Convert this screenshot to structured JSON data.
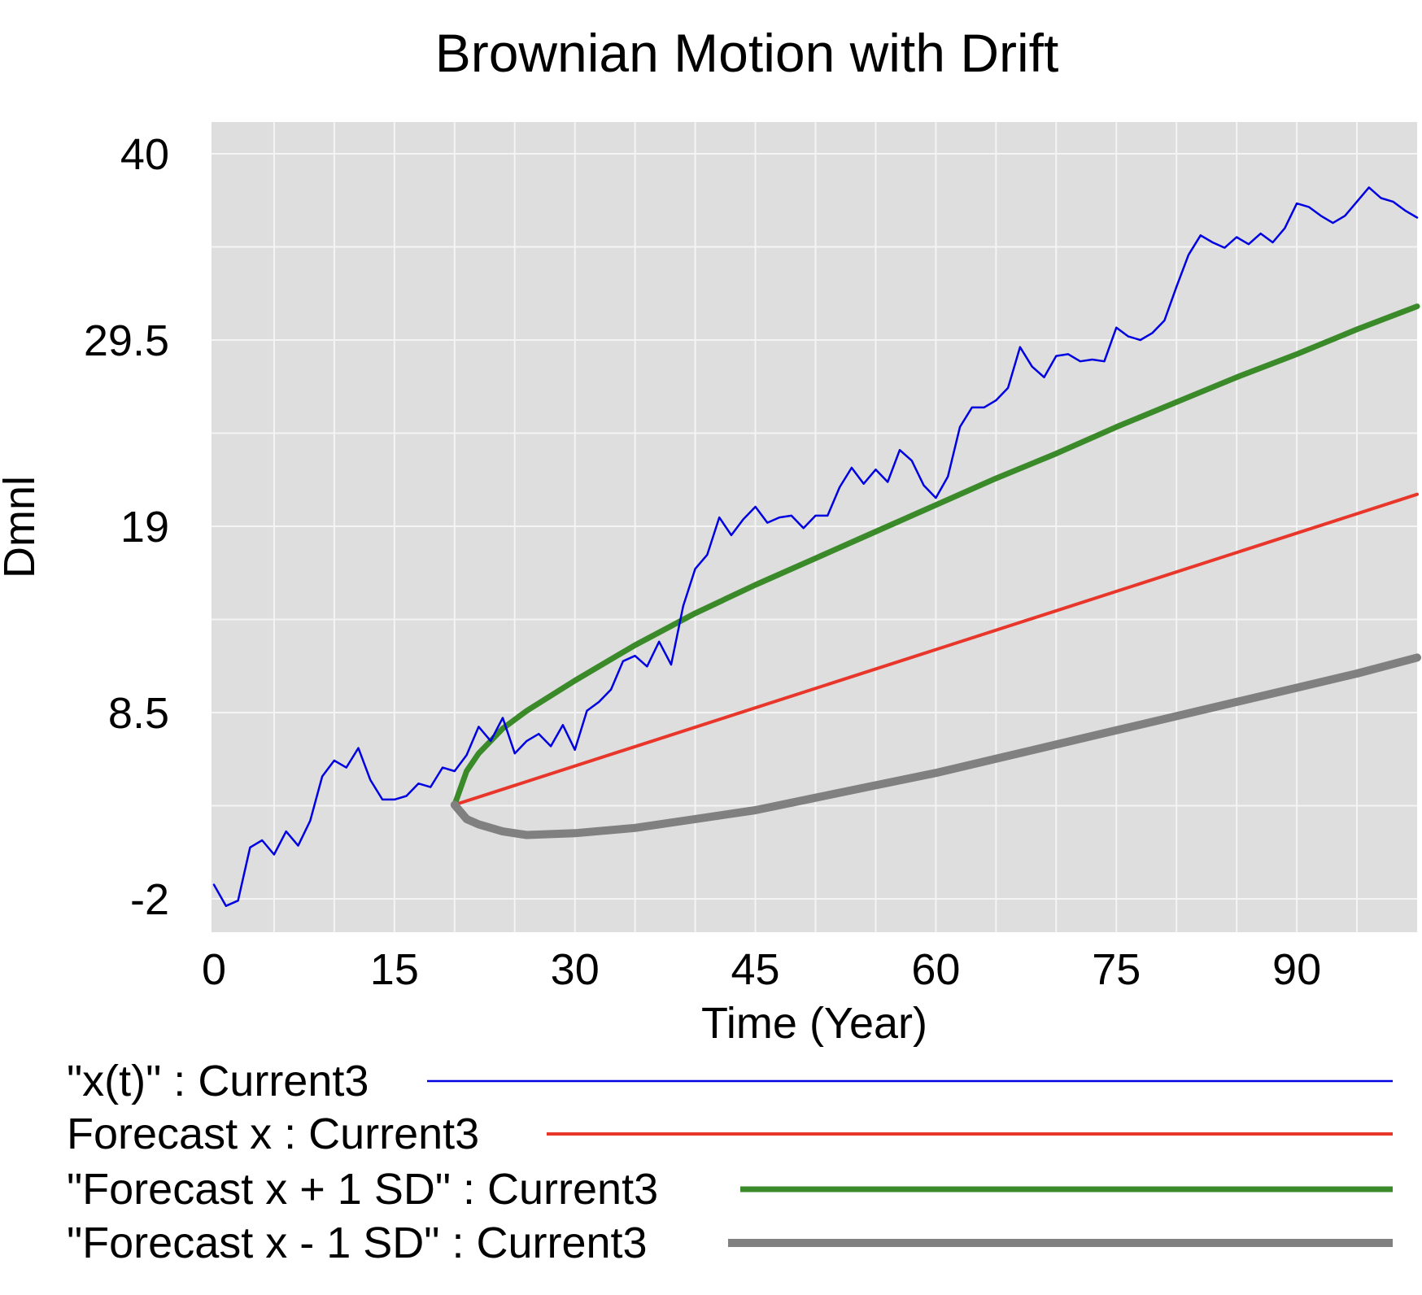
{
  "chart_data": {
    "type": "line",
    "title": "Brownian Motion with Drift",
    "xlabel": "Time (Year)",
    "ylabel": "Dmnl",
    "xlim": [
      0,
      100
    ],
    "ylim": [
      -2,
      40
    ],
    "xticks": [
      0,
      15,
      30,
      45,
      60,
      75,
      90
    ],
    "yticks": [
      -2,
      8.5,
      19,
      29.5,
      40
    ],
    "yticks_labels": [
      "-2",
      "8.5",
      "19",
      "29.5",
      "40"
    ],
    "xticks_labels": [
      "0",
      "15",
      "30",
      "45",
      "60",
      "75",
      "90"
    ],
    "grid": true,
    "legend_position": "bottom",
    "series": [
      {
        "name": "\"x(t)\" : Current3",
        "color": "#0000e0",
        "x": [
          0,
          1,
          2,
          3,
          4,
          5,
          6,
          7,
          8,
          9,
          10,
          11,
          12,
          13,
          14,
          15,
          16,
          17,
          18,
          19,
          20,
          21,
          22,
          23,
          24,
          25,
          26,
          27,
          28,
          29,
          30,
          31,
          32,
          33,
          34,
          35,
          36,
          37,
          38,
          39,
          40,
          41,
          42,
          43,
          44,
          45,
          46,
          47,
          48,
          49,
          50,
          51,
          52,
          53,
          54,
          55,
          56,
          57,
          58,
          59,
          60,
          61,
          62,
          63,
          64,
          65,
          66,
          67,
          68,
          69,
          70,
          71,
          72,
          73,
          74,
          75,
          76,
          77,
          78,
          79,
          80,
          81,
          82,
          83,
          84,
          85,
          86,
          87,
          88,
          89,
          90,
          91,
          92,
          93,
          94,
          95,
          96,
          97,
          98,
          99,
          100
        ],
        "values": [
          -1.2,
          -2.4,
          -2.1,
          0.9,
          1.3,
          0.5,
          1.8,
          1.0,
          2.4,
          4.9,
          5.8,
          5.4,
          6.5,
          4.7,
          3.6,
          3.6,
          3.8,
          4.5,
          4.3,
          5.4,
          5.2,
          6.1,
          7.7,
          6.9,
          8.2,
          6.2,
          6.9,
          7.3,
          6.6,
          7.8,
          6.4,
          8.6,
          9.1,
          9.8,
          11.4,
          11.7,
          11.1,
          12.5,
          11.2,
          14.5,
          16.6,
          17.4,
          19.5,
          18.5,
          19.4,
          20.1,
          19.2,
          19.5,
          19.6,
          18.9,
          19.6,
          19.6,
          21.2,
          22.3,
          21.4,
          22.2,
          21.5,
          23.3,
          22.7,
          21.3,
          20.6,
          21.8,
          24.6,
          25.7,
          25.7,
          26.1,
          26.8,
          29.1,
          28.0,
          27.4,
          28.6,
          28.7,
          28.3,
          28.4,
          28.3,
          30.2,
          29.7,
          29.5,
          29.9,
          30.6,
          32.5,
          34.3,
          35.4,
          35.0,
          34.7,
          35.3,
          34.9,
          35.5,
          35.0,
          35.8,
          37.2,
          37.0,
          36.5,
          36.1,
          36.5,
          37.3,
          38.1,
          37.5,
          37.3,
          36.8,
          36.4
        ],
        "stroke_width_px": 2.5
      },
      {
        "name": "Forecast x : Current3",
        "color": "#e8362a",
        "x": [
          20,
          100
        ],
        "values": [
          3.3,
          20.8
        ],
        "stroke_width_px": 4
      },
      {
        "name": "\"Forecast x + 1 SD\" : Current3",
        "color": "#3b8a2a",
        "x": [
          20,
          21,
          22,
          24,
          26,
          30,
          35,
          40,
          45,
          50,
          55,
          60,
          65,
          70,
          75,
          80,
          85,
          90,
          95,
          100
        ],
        "values": [
          3.3,
          5.2,
          6.2,
          7.6,
          8.6,
          10.3,
          12.3,
          14.1,
          15.7,
          17.2,
          18.7,
          20.2,
          21.7,
          23.1,
          24.6,
          26.0,
          27.4,
          28.7,
          30.1,
          31.4
        ],
        "stroke_width_px": 7
      },
      {
        "name": "\"Forecast x - 1 SD\" : Current3",
        "color": "#808080",
        "x": [
          20,
          21,
          22,
          24,
          26,
          30,
          35,
          40,
          45,
          50,
          55,
          60,
          65,
          70,
          75,
          80,
          85,
          90,
          95,
          100
        ],
        "values": [
          3.3,
          2.5,
          2.2,
          1.8,
          1.6,
          1.7,
          2.0,
          2.5,
          3.0,
          3.7,
          4.4,
          5.1,
          5.9,
          6.7,
          7.5,
          8.3,
          9.1,
          9.9,
          10.7,
          11.6
        ],
        "stroke_width_px": 10
      }
    ]
  }
}
